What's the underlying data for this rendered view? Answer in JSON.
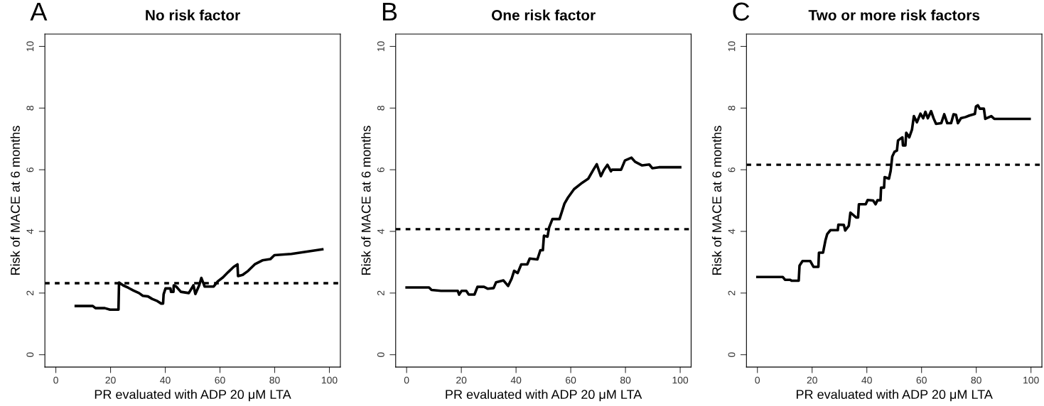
{
  "chart_data": [
    {
      "type": "line",
      "title": "No risk factor",
      "xlabel": "PR evaluated with ADP 20 μM LTA",
      "ylabel": "Risk of MACE at 6 months",
      "annotations": [
        "A"
      ],
      "xlim": [
        -4,
        104
      ],
      "xticks": [
        0,
        20,
        40,
        60,
        80,
        100
      ],
      "ylim": [
        -0.4,
        10.4
      ],
      "yticks": [
        0,
        2,
        4,
        6,
        8,
        10
      ],
      "grid": false,
      "marker": "none",
      "line_style": "solid",
      "ref_lines": [
        {
          "axis": "y",
          "value": 2.32,
          "color": "#000000",
          "line_style": "dotted"
        }
      ],
      "series": [
        {
          "color": "#000000",
          "x": [
            7.3,
            13.5,
            14.5,
            17.9,
            19.8,
            22.9,
            23.1,
            24.6,
            26.5,
            28.4,
            30.4,
            31.8,
            33.7,
            35.2,
            37.1,
            38.5,
            39.2,
            39.4,
            40.1,
            41.9,
            42.1,
            43.0,
            43.1,
            44.0,
            45.7,
            48.6,
            50.3,
            51.0,
            52.4,
            53.2,
            54.4,
            57.7,
            59.2,
            61.1,
            63.0,
            65.0,
            66.4,
            66.6,
            68.3,
            70.3,
            72.7,
            75.5,
            78.4,
            79.9,
            86.1,
            97.4
          ],
          "values": [
            1.58,
            1.58,
            1.51,
            1.51,
            1.46,
            1.46,
            2.34,
            2.25,
            2.17,
            2.08,
            2.0,
            1.91,
            1.89,
            1.81,
            1.74,
            1.66,
            1.66,
            1.96,
            2.15,
            2.15,
            2.04,
            2.04,
            2.25,
            2.21,
            2.04,
            2.0,
            2.25,
            1.97,
            2.25,
            2.49,
            2.21,
            2.21,
            2.38,
            2.51,
            2.68,
            2.85,
            2.93,
            2.55,
            2.59,
            2.72,
            2.93,
            3.06,
            3.1,
            3.23,
            3.27,
            3.42
          ]
        }
      ]
    },
    {
      "type": "line",
      "title": "One risk factor",
      "xlabel": "PR evaluated with ADP 20 μM LTA",
      "ylabel": "Risk of MACE at 6 months",
      "annotations": [
        "B"
      ],
      "xlim": [
        -4,
        104
      ],
      "xticks": [
        0,
        20,
        40,
        60,
        80,
        100
      ],
      "ylim": [
        -0.4,
        10.4
      ],
      "yticks": [
        0,
        2,
        4,
        6,
        8,
        10
      ],
      "grid": false,
      "marker": "none",
      "line_style": "solid",
      "ref_lines": [
        {
          "axis": "y",
          "value": 4.07,
          "color": "#000000",
          "line_style": "dotted"
        }
      ],
      "series": [
        {
          "color": "#000000",
          "x": [
            0,
            8.2,
            9.1,
            12.6,
            18.7,
            19.2,
            20.1,
            21.8,
            22.7,
            24.8,
            25.9,
            28.3,
            29.7,
            31.8,
            32.7,
            35.4,
            37.1,
            38.4,
            39.3,
            40.6,
            41.9,
            44.1,
            45.0,
            47.8,
            48.9,
            49.8,
            50.2,
            51.5,
            52.1,
            53.3,
            55.9,
            57.7,
            59.0,
            61.2,
            64.2,
            66.4,
            68.2,
            69.5,
            71.0,
            72.1,
            73.4,
            74.7,
            75.1,
            78.4,
            79.8,
            82.2,
            83.5,
            86.1,
            88.7,
            89.8,
            92.2,
            100
          ],
          "values": [
            2.18,
            2.18,
            2.1,
            2.07,
            2.07,
            1.95,
            2.07,
            2.07,
            1.95,
            1.95,
            2.2,
            2.2,
            2.14,
            2.16,
            2.35,
            2.41,
            2.23,
            2.47,
            2.72,
            2.65,
            2.93,
            2.93,
            3.12,
            3.09,
            3.39,
            3.39,
            3.86,
            3.83,
            4.13,
            4.4,
            4.4,
            4.9,
            5.1,
            5.37,
            5.58,
            5.71,
            5.99,
            6.18,
            5.79,
            5.99,
            6.16,
            5.95,
            6.0,
            6.0,
            6.3,
            6.39,
            6.26,
            6.14,
            6.17,
            6.05,
            6.08,
            6.08
          ]
        }
      ]
    },
    {
      "type": "line",
      "title": "Two or more risk factors",
      "xlabel": "PR evaluated with ADP 20 μM LTA",
      "ylabel": "Risk of MACE at 6 months",
      "annotations": [
        "C"
      ],
      "xlim": [
        -4,
        104
      ],
      "xticks": [
        0,
        20,
        40,
        60,
        80,
        100
      ],
      "ylim": [
        -0.4,
        10.4
      ],
      "yticks": [
        0,
        2,
        4,
        6,
        8,
        10
      ],
      "grid": false,
      "marker": "none",
      "line_style": "solid",
      "ref_lines": [
        {
          "axis": "y",
          "value": 6.16,
          "color": "#000000",
          "line_style": "dotted"
        }
      ],
      "series": [
        {
          "color": "#000000",
          "x": [
            0,
            9.3,
            10.1,
            12.0,
            12.5,
            15.1,
            15.4,
            16.5,
            19.3,
            20.5,
            22.3,
            22.5,
            24.0,
            24.9,
            25.5,
            26.7,
            29.4,
            29.6,
            31.6,
            32.1,
            33.4,
            34.0,
            36.1,
            36.8,
            37.1,
            39.6,
            40.3,
            42.3,
            43.2,
            43.9,
            45.0,
            45.2,
            46.3,
            46.5,
            48.1,
            48.7,
            49.3,
            50.1,
            51.0,
            51.4,
            53.0,
            53.2,
            54.1,
            54.4,
            55.5,
            56.5,
            57.2,
            58.3,
            59.6,
            60.6,
            61.4,
            62.3,
            63.5,
            64.4,
            65.3,
            67.2,
            68.3,
            69.4,
            70.8,
            71.7,
            72.6,
            73.3,
            74.4,
            76.1,
            77.5,
            79.5,
            79.9,
            80.6,
            81.3,
            82.8,
            83.3,
            85.5,
            86.6,
            99.5
          ],
          "values": [
            2.52,
            2.52,
            2.43,
            2.43,
            2.4,
            2.4,
            2.89,
            3.04,
            3.04,
            2.85,
            2.85,
            3.31,
            3.31,
            3.72,
            3.91,
            4.04,
            4.04,
            4.22,
            4.21,
            4.03,
            4.18,
            4.61,
            4.45,
            4.45,
            4.88,
            4.88,
            5.02,
            5.0,
            4.88,
            5.01,
            5.01,
            5.42,
            5.42,
            5.76,
            5.71,
            5.96,
            6.43,
            6.58,
            6.62,
            6.95,
            7.05,
            6.79,
            6.79,
            7.2,
            7.05,
            7.3,
            7.74,
            7.54,
            7.82,
            7.67,
            7.88,
            7.67,
            7.9,
            7.67,
            7.49,
            7.51,
            7.8,
            7.51,
            7.51,
            7.8,
            7.78,
            7.51,
            7.67,
            7.71,
            7.76,
            7.81,
            8.05,
            8.09,
            7.98,
            7.98,
            7.65,
            7.74,
            7.65,
            7.65
          ]
        }
      ]
    }
  ]
}
